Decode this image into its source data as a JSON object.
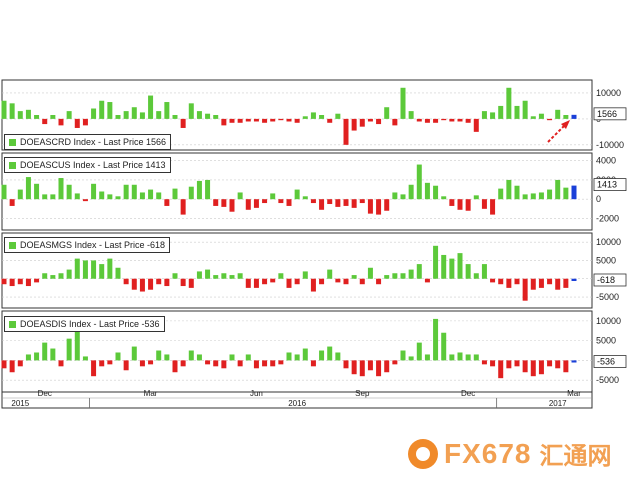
{
  "colors": {
    "positive": "#5cc93a",
    "negative": "#e02020",
    "latest": "#1a3fd8",
    "grid": "#cccccc",
    "panel_border": "#333333",
    "arrow": "#e02020"
  },
  "x_axis": {
    "months": [
      {
        "label": "Dec",
        "week": 5
      },
      {
        "label": "Mar",
        "week": 18
      },
      {
        "label": "Jun",
        "week": 31
      },
      {
        "label": "Sep",
        "week": 44
      },
      {
        "label": "Dec",
        "week": 57
      },
      {
        "label": "Mar",
        "week": 70
      }
    ],
    "years": [
      {
        "label": "2015",
        "week": 2
      },
      {
        "label": "2016",
        "week": 36
      },
      {
        "label": "2017",
        "week": 68
      }
    ],
    "year_dividers": [
      10,
      60
    ]
  },
  "watermark": {
    "logo": "FX678",
    "cn": "汇通网"
  },
  "chart_data": [
    {
      "type": "bar",
      "legend": "DOEASCRD Index - Last Price 1566",
      "last_value": "1566",
      "ylim": [
        -12000,
        15000
      ],
      "ticks": [
        {
          "v": 10000,
          "label": "10000"
        },
        {
          "v": 0,
          "label": "0"
        },
        {
          "v": -10000,
          "label": "-10000"
        }
      ],
      "values": [
        7000,
        6000,
        3000,
        3500,
        1500,
        -2000,
        1500,
        -2500,
        3000,
        -3500,
        -2500,
        4000,
        7000,
        6500,
        1500,
        3000,
        4500,
        2500,
        9000,
        3000,
        6500,
        1500,
        -3500,
        6000,
        3000,
        2000,
        1500,
        -2500,
        -1500,
        -1500,
        -1000,
        -1000,
        -1500,
        -1000,
        -500,
        -1000,
        -1500,
        1000,
        2500,
        1500,
        -1500,
        2000,
        -10000,
        -4500,
        -3000,
        -1000,
        -2000,
        4500,
        -2500,
        12000,
        3000,
        -1000,
        -1500,
        -1500,
        -500,
        -1000,
        -1000,
        -1500,
        -5000,
        3000,
        2500,
        5000,
        12000,
        5000,
        7000,
        1000,
        2000,
        -500,
        3500,
        1500,
        1566
      ]
    },
    {
      "type": "bar",
      "legend": "DOEASCUS Index - Last Price 1413",
      "last_value": "1413",
      "ylim": [
        -3200,
        4800
      ],
      "ticks": [
        {
          "v": 4000,
          "label": "4000"
        },
        {
          "v": 2000,
          "label": "2000"
        },
        {
          "v": 0,
          "label": "0"
        },
        {
          "v": -2000,
          "label": "-2000"
        }
      ],
      "values": [
        1500,
        -700,
        1000,
        2300,
        1600,
        500,
        500,
        2200,
        1500,
        600,
        -200,
        1600,
        800,
        500,
        300,
        1500,
        1500,
        700,
        1000,
        700,
        -700,
        1100,
        -1600,
        1300,
        1900,
        2000,
        -700,
        -800,
        -1300,
        700,
        -1100,
        -900,
        -400,
        600,
        -400,
        -700,
        1000,
        300,
        -400,
        -1100,
        -500,
        -800,
        -700,
        -900,
        -400,
        -1500,
        -1600,
        -1200,
        700,
        500,
        1500,
        3600,
        1700,
        1400,
        300,
        -700,
        -1100,
        -1200,
        400,
        -1000,
        -1600,
        1100,
        2000,
        1400,
        500,
        600,
        700,
        1000,
        2000,
        1200,
        1413
      ]
    },
    {
      "type": "bar",
      "legend": "DOEASMGS Index - Last Price -618",
      "last_value": "-618",
      "ylim": [
        -8000,
        12500
      ],
      "ticks": [
        {
          "v": 10000,
          "label": "10000"
        },
        {
          "v": 5000,
          "label": "5000"
        },
        {
          "v": 0,
          "label": "0"
        },
        {
          "v": -5000,
          "label": "-5000"
        }
      ],
      "values": [
        -1500,
        -2000,
        -1500,
        -2000,
        -1000,
        1500,
        1000,
        1500,
        2500,
        5500,
        5000,
        5000,
        4000,
        5500,
        3000,
        -1500,
        -3000,
        -3500,
        -3000,
        -1500,
        -2000,
        1500,
        -2000,
        -2500,
        2000,
        2500,
        1000,
        1500,
        1000,
        1500,
        -2500,
        -2500,
        -1500,
        -1000,
        1500,
        -2500,
        -1500,
        2000,
        -3500,
        -1500,
        2500,
        -1000,
        -1500,
        1000,
        -1500,
        3000,
        -1500,
        1000,
        1500,
        1500,
        2500,
        4000,
        -1000,
        9000,
        6500,
        5500,
        7000,
        4000,
        1500,
        4000,
        -1000,
        -1500,
        -2500,
        -1500,
        -6000,
        -3000,
        -2500,
        -1500,
        -3000,
        -2500,
        -618
      ]
    },
    {
      "type": "bar",
      "legend": "DOEASDIS Index - Last Price -536",
      "last_value": "-536",
      "ylim": [
        -8000,
        12500
      ],
      "ticks": [
        {
          "v": 10000,
          "label": "10000"
        },
        {
          "v": 5000,
          "label": "5000"
        },
        {
          "v": 0,
          "label": "0"
        },
        {
          "v": -5000,
          "label": "-5000"
        }
      ],
      "values": [
        -2000,
        -3000,
        -1500,
        1500,
        2000,
        4500,
        3000,
        -1500,
        5500,
        7500,
        1000,
        -4000,
        -1500,
        -1000,
        2000,
        -2500,
        3500,
        -1500,
        -1000,
        2500,
        1500,
        -3000,
        -1500,
        2500,
        1500,
        -1000,
        -1500,
        -2000,
        1500,
        -1500,
        1500,
        -2000,
        -1500,
        -1500,
        -1000,
        2000,
        1500,
        3000,
        -1500,
        2500,
        3500,
        2000,
        -2000,
        -3500,
        -4000,
        -2500,
        -4000,
        -3000,
        -1000,
        2500,
        1000,
        4500,
        1500,
        10500,
        7000,
        1500,
        2000,
        1500,
        1500,
        -1000,
        -1500,
        -4500,
        -2000,
        -1500,
        -3000,
        -4000,
        -3500,
        -1500,
        -2000,
        -3000,
        -536
      ]
    }
  ]
}
